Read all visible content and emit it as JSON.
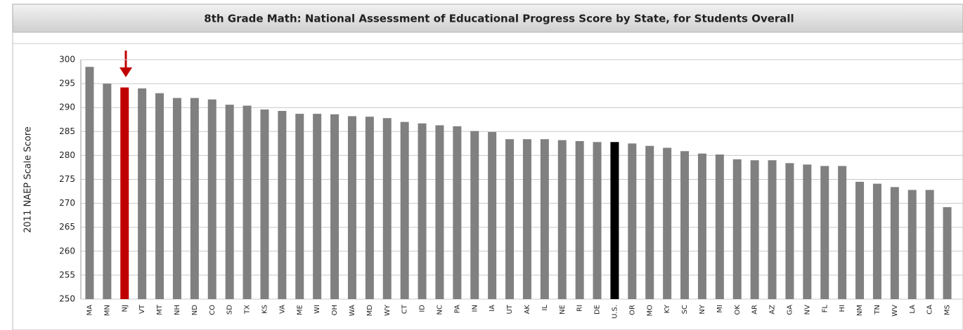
{
  "chart_data": {
    "type": "bar",
    "title": "8th Grade Math: National Assessment of Educational Progress Score by State, for Students Overall",
    "y_label": "2011 NAEP Scale Score",
    "categories": [
      "MA",
      "MN",
      "NJ",
      "VT",
      "MT",
      "NH",
      "ND",
      "CO",
      "SD",
      "TX",
      "KS",
      "VA",
      "ME",
      "WI",
      "OH",
      "WA",
      "MD",
      "WY",
      "CT",
      "ID",
      "NC",
      "PA",
      "IN",
      "IA",
      "UT",
      "AK",
      "IL",
      "NE",
      "RI",
      "DE",
      "U.S.",
      "OR",
      "MO",
      "KY",
      "SC",
      "NY",
      "MI",
      "OK",
      "AR",
      "AZ",
      "GA",
      "NV",
      "FL",
      "HI",
      "NM",
      "TN",
      "WV",
      "LA",
      "CA",
      "MS"
    ],
    "values": [
      298.5,
      295,
      294.2,
      294,
      293,
      292,
      292,
      291.7,
      290.6,
      290.4,
      289.6,
      289.3,
      288.7,
      288.7,
      288.6,
      288.2,
      288.1,
      287.8,
      287,
      286.7,
      286.3,
      286.1,
      285.1,
      284.9,
      283.4,
      283.4,
      283.4,
      283.2,
      283,
      282.8,
      282.8,
      282.5,
      282,
      281.6,
      280.9,
      280.4,
      280.2,
      279.2,
      279,
      279,
      278.4,
      278.1,
      277.8,
      277.8,
      274.5,
      274.1,
      273.4,
      272.8,
      272.8,
      269.2
    ],
    "color": "#808080",
    "highlight_colors": {
      "NJ": "#c00000",
      "U.S.": "#000000"
    },
    "ylim": [
      250,
      300
    ],
    "yticks": [
      250,
      255,
      260,
      265,
      270,
      275,
      280,
      285,
      290,
      295,
      300
    ],
    "grid": true
  }
}
